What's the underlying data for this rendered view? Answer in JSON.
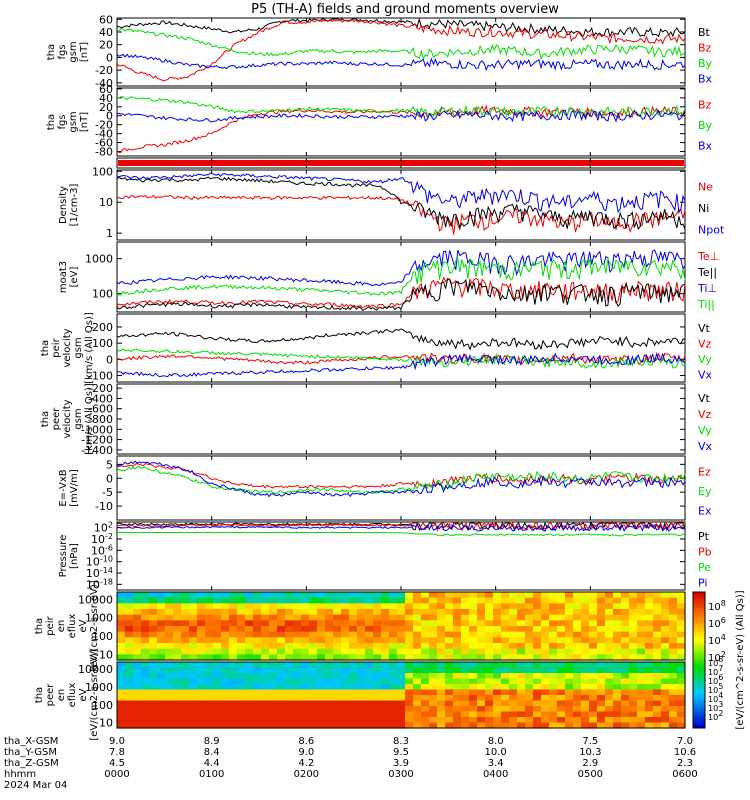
{
  "title": "P5 (TH-A) fields and ground moments overview",
  "colors": {
    "black": "#000000",
    "red": "#ee0000",
    "green": "#00dd00",
    "blue": "#0000ee"
  },
  "chart_data": [
    {
      "type": "line",
      "ylabel": [
        "tha",
        "fgs",
        "gsm",
        "[nT]"
      ],
      "yticks": [
        "60",
        "40",
        "20",
        "0",
        "-20",
        "-40"
      ],
      "ylim": [
        -45,
        62
      ],
      "legend": [
        "Bt",
        "Bz",
        "By",
        "Bx"
      ],
      "series": [
        {
          "name": "Bt",
          "color": "black",
          "values": [
            48,
            52,
            55,
            50,
            45,
            40,
            45,
            58,
            58,
            60,
            60,
            58,
            56,
            54,
            52,
            50,
            48,
            46,
            44,
            42,
            40,
            40,
            40,
            38,
            40
          ]
        },
        {
          "name": "Bz",
          "color": "red",
          "values": [
            -10,
            -25,
            -35,
            -30,
            -10,
            20,
            40,
            55,
            56,
            58,
            58,
            55,
            50,
            45,
            42,
            40,
            40,
            38,
            36,
            34,
            32,
            30,
            30,
            28,
            30
          ]
        },
        {
          "name": "By",
          "color": "green",
          "values": [
            45,
            40,
            35,
            30,
            20,
            10,
            5,
            5,
            10,
            10,
            8,
            10,
            10,
            5,
            8,
            10,
            12,
            10,
            5,
            10,
            12,
            14,
            12,
            8,
            10
          ]
        },
        {
          "name": "Bx",
          "color": "blue",
          "values": [
            5,
            0,
            -5,
            -12,
            -15,
            -15,
            -12,
            -10,
            -10,
            -8,
            -10,
            -10,
            -12,
            -10,
            -10,
            -12,
            -12,
            -10,
            -10,
            -12,
            -10,
            -12,
            -10,
            -12,
            -10
          ]
        }
      ]
    },
    {
      "type": "line",
      "ylabel": [
        "tha",
        "fgs",
        "gsm",
        "[nT]"
      ],
      "yticks": [
        "60",
        "40",
        "20",
        "0",
        "-20",
        "-40",
        "-60",
        "-80"
      ],
      "ylim": [
        -90,
        62
      ],
      "legend": [
        "Bz",
        "By",
        "Bx"
      ],
      "series": [
        {
          "name": "Bz",
          "color": "red",
          "values": [
            -80,
            -70,
            -65,
            -55,
            -40,
            -10,
            5,
            10,
            12,
            10,
            8,
            10,
            8,
            5,
            8,
            10,
            12,
            10,
            8,
            10,
            8,
            5,
            8,
            10,
            8
          ]
        },
        {
          "name": "By",
          "color": "green",
          "values": [
            40,
            38,
            35,
            30,
            20,
            10,
            10,
            12,
            15,
            14,
            12,
            10,
            12,
            8,
            10,
            12,
            10,
            8,
            10,
            12,
            10,
            8,
            10,
            12,
            10
          ]
        },
        {
          "name": "Bx",
          "color": "blue",
          "values": [
            5,
            0,
            -5,
            -8,
            -10,
            -5,
            -2,
            0,
            0,
            -2,
            -3,
            -2,
            0,
            -2,
            0,
            2,
            0,
            -2,
            0,
            2,
            0,
            -2,
            0,
            2,
            0
          ]
        }
      ]
    },
    {
      "type": "line",
      "ylabel": [
        "Density",
        "[1/cm-3]"
      ],
      "yscale": "log",
      "yticks": [
        "100",
        "10",
        "1"
      ],
      "ylim": [
        0.6,
        110
      ],
      "legend": [
        "Ne",
        "Ni",
        "Npot"
      ],
      "series": [
        {
          "name": "Ne",
          "color": "red",
          "values": [
            15,
            15,
            15,
            14,
            14,
            14,
            14,
            14,
            14,
            14,
            14,
            14,
            12,
            4,
            2,
            3,
            3,
            4,
            3,
            2,
            3,
            2,
            3,
            3,
            4
          ]
        },
        {
          "name": "Ni",
          "color": "black",
          "values": [
            60,
            50,
            55,
            50,
            60,
            55,
            50,
            45,
            40,
            40,
            35,
            35,
            10,
            5,
            3,
            4,
            5,
            6,
            4,
            3,
            4,
            3,
            3,
            4,
            3
          ]
        },
        {
          "name": "Npot",
          "color": "blue",
          "values": [
            70,
            60,
            65,
            70,
            80,
            75,
            70,
            65,
            60,
            55,
            50,
            45,
            60,
            20,
            10,
            15,
            20,
            18,
            12,
            10,
            15,
            10,
            12,
            15,
            10
          ]
        }
      ]
    },
    {
      "type": "line",
      "ylabel": [
        "moat3",
        "[eV]"
      ],
      "yscale": "log",
      "yticks": [
        "1000",
        "100"
      ],
      "ylim": [
        30,
        3000
      ],
      "legend": [
        "Te⊥",
        "Te||",
        "Ti⊥",
        "Ti||"
      ],
      "series": [
        {
          "name": "Te⊥",
          "color": "red",
          "values": [
            50,
            55,
            60,
            60,
            55,
            55,
            60,
            55,
            50,
            50,
            45,
            45,
            50,
            150,
            200,
            180,
            150,
            120,
            150,
            130,
            140,
            120,
            150,
            130,
            140
          ]
        },
        {
          "name": "Te||",
          "color": "black",
          "values": [
            40,
            45,
            50,
            50,
            45,
            45,
            50,
            45,
            40,
            40,
            38,
            38,
            40,
            120,
            180,
            160,
            130,
            100,
            130,
            110,
            120,
            100,
            130,
            110,
            120
          ]
        },
        {
          "name": "Ti⊥",
          "color": "blue",
          "values": [
            200,
            220,
            250,
            280,
            300,
            300,
            280,
            260,
            240,
            220,
            200,
            180,
            200,
            800,
            1200,
            1000,
            900,
            800,
            1000,
            900,
            1100,
            1000,
            1200,
            1100,
            1000
          ]
        },
        {
          "name": "Ti||",
          "color": "green",
          "values": [
            100,
            120,
            140,
            150,
            160,
            160,
            150,
            140,
            130,
            120,
            110,
            100,
            110,
            500,
            700,
            600,
            550,
            500,
            600,
            550,
            650,
            600,
            700,
            650,
            600
          ]
        }
      ]
    },
    {
      "type": "line",
      "ylabel": [
        "tha",
        "peir",
        "velocity",
        "gsm",
        "[km/s (All Qs)]"
      ],
      "yticks": [
        "200",
        "100",
        "0",
        "-100"
      ],
      "ylim": [
        -140,
        280
      ],
      "legend": [
        "Vt",
        "Vz",
        "Vy",
        "Vx"
      ],
      "series": [
        {
          "name": "Vt",
          "color": "black",
          "values": [
            140,
            150,
            160,
            150,
            130,
            120,
            110,
            120,
            130,
            150,
            160,
            170,
            180,
            120,
            100,
            90,
            110,
            100,
            90,
            100,
            110,
            120,
            100,
            110,
            120
          ]
        },
        {
          "name": "Vz",
          "color": "red",
          "values": [
            0,
            10,
            20,
            20,
            10,
            0,
            -10,
            -20,
            -20,
            -10,
            0,
            10,
            20,
            10,
            0,
            10,
            0,
            -10,
            0,
            10,
            0,
            -10,
            0,
            10,
            0
          ]
        },
        {
          "name": "Vy",
          "color": "green",
          "values": [
            60,
            55,
            50,
            45,
            40,
            35,
            30,
            25,
            20,
            15,
            10,
            5,
            0,
            -10,
            -20,
            -10,
            0,
            -10,
            -20,
            -10,
            -30,
            -20,
            -10,
            -20,
            -30
          ]
        },
        {
          "name": "Vx",
          "color": "blue",
          "values": [
            -80,
            -90,
            -100,
            -95,
            -90,
            -85,
            -80,
            -75,
            -70,
            -65,
            -60,
            -55,
            -50,
            -20,
            0,
            10,
            0,
            -10,
            0,
            10,
            0,
            -10,
            0,
            10,
            0
          ]
        }
      ]
    },
    {
      "type": "line",
      "ylabel": [
        "tha",
        "peer",
        "velocity",
        "gsm",
        "[km/s (All Qs)]"
      ],
      "yticks": [
        "-200",
        "-400",
        "-600",
        "-800",
        "-1000",
        "-1200",
        "-1400"
      ],
      "ylim": [
        -1480,
        -120
      ],
      "legend": [
        "Vt",
        "Vz",
        "Vy",
        "Vx"
      ],
      "series": []
    },
    {
      "type": "line",
      "ylabel": [
        "E=-VxB",
        "[mV/m]"
      ],
      "yticks": [
        "5",
        "0",
        "-5",
        "-10"
      ],
      "ylim": [
        -15,
        8
      ],
      "legend": [
        "Ez",
        "Ey",
        "Ex"
      ],
      "series": [
        {
          "name": "Ez",
          "color": "red",
          "values": [
            4,
            5,
            4,
            3,
            0,
            -2,
            -3,
            -3,
            -3,
            -3,
            -3,
            -3,
            -2,
            -2,
            -1,
            0,
            0,
            -1,
            0,
            0,
            -1,
            0,
            0,
            -1,
            0
          ]
        },
        {
          "name": "Ey",
          "color": "green",
          "values": [
            3,
            4,
            2,
            0,
            -3,
            -4,
            -5,
            -5,
            -4,
            -4,
            -5,
            -5,
            -4,
            -3,
            -2,
            0,
            1,
            0,
            1,
            0,
            0,
            1,
            0,
            0,
            1
          ]
        },
        {
          "name": "Ex",
          "color": "blue",
          "values": [
            5,
            6,
            5,
            3,
            -2,
            -4,
            -6,
            -6,
            -5,
            -6,
            -6,
            -5,
            -5,
            -4,
            -3,
            -2,
            -1,
            -2,
            -1,
            -2,
            -1,
            -2,
            -1,
            -2,
            -1
          ]
        }
      ]
    },
    {
      "type": "line",
      "ylabel": [
        "Pressure",
        "[nPa]"
      ],
      "yscale": "log",
      "yticks": [
        "10^2",
        "10^-2",
        "10^-6",
        "10^-10",
        "10^-14",
        "10^-18"
      ],
      "ylim": [
        -20,
        4
      ],
      "legend": [
        "Pt",
        "Pb",
        "Pe",
        "Pi"
      ],
      "series": [
        {
          "name": "Pt",
          "color": "black",
          "values": [
            3.2,
            3.2,
            3.2,
            3.2,
            3.2,
            3.2,
            3.2,
            3.2,
            3.2,
            3.2,
            3.2,
            3.2,
            3.2,
            3.0,
            2.9,
            2.9,
            2.9,
            2.9,
            2.9,
            2.9,
            2.9,
            2.9,
            2.9,
            2.9,
            2.9
          ]
        },
        {
          "name": "Pb",
          "color": "red",
          "values": [
            2.7,
            2.7,
            2.7,
            2.8,
            2.8,
            2.9,
            2.9,
            2.9,
            2.9,
            2.9,
            2.9,
            2.9,
            2.8,
            2.6,
            2.6,
            2.6,
            2.6,
            2.6,
            2.6,
            2.6,
            2.6,
            2.6,
            2.6,
            2.6,
            2.6
          ]
        },
        {
          "name": "Pe",
          "color": "green",
          "values": [
            0.3,
            0.3,
            0.3,
            0.3,
            0.3,
            0.3,
            0.3,
            0.3,
            0.3,
            0.3,
            0.3,
            0.3,
            0.2,
            -0.3,
            -0.6,
            -0.5,
            -0.5,
            -0.4,
            -0.6,
            -0.5,
            -0.5,
            -0.6,
            -0.5,
            -0.4,
            -0.5
          ]
        },
        {
          "name": "Pi",
          "color": "blue",
          "values": [
            2.0,
            2.0,
            2.1,
            2.1,
            2.2,
            2.2,
            2.2,
            2.1,
            2.0,
            2.0,
            2.0,
            2.0,
            2.0,
            1.9,
            1.8,
            1.8,
            1.8,
            1.8,
            1.8,
            1.8,
            1.8,
            1.8,
            1.8,
            1.8,
            1.8
          ]
        }
      ]
    },
    {
      "type": "heatmap",
      "ylabel": [
        "tha",
        "peir",
        "en",
        "eflux",
        "eV",
        "[eV/(cm2-s-sr-eV)]"
      ],
      "yscale": "log",
      "yticks": [
        "10000",
        "1000",
        "100",
        "10"
      ],
      "ylim": [
        5,
        25000
      ]
    },
    {
      "type": "heatmap",
      "ylabel": [
        "tha",
        "peer",
        "en",
        "eflux",
        "eV",
        "[eV/(cm2-s-sr-eV)]"
      ],
      "yscale": "log",
      "yticks": [
        "10000",
        "1000",
        "100",
        "10"
      ],
      "ylim": [
        5,
        25000
      ]
    }
  ],
  "colorbar": {
    "label": "[eV/(cm^2-s-sr-eV) (All Qs)]",
    "ticks": [
      "10^8",
      "10^6",
      "10^4",
      "10^2"
    ],
    "ticks2": [
      "10^8",
      "10^7",
      "10^6",
      "10^5",
      "10^4",
      "10^3",
      "10^2"
    ]
  },
  "xaxis": {
    "rows": [
      {
        "label": "tha_X-GSM",
        "values": [
          "9.0",
          "8.9",
          "8.6",
          "8.3",
          "8.0",
          "7.5",
          "7.0"
        ]
      },
      {
        "label": "tha_Y-GSM",
        "values": [
          "7.8",
          "8.4",
          "9.0",
          "9.5",
          "10.0",
          "10.3",
          "10.6"
        ]
      },
      {
        "label": "tha_Z-GSM",
        "values": [
          "4.5",
          "4.4",
          "4.2",
          "3.9",
          "3.4",
          "2.9",
          "2.3"
        ]
      },
      {
        "label": "hhmm",
        "values": [
          "0000",
          "0100",
          "0200",
          "0300",
          "0400",
          "0500",
          "0600"
        ]
      }
    ],
    "date": "2024 Mar 04"
  }
}
